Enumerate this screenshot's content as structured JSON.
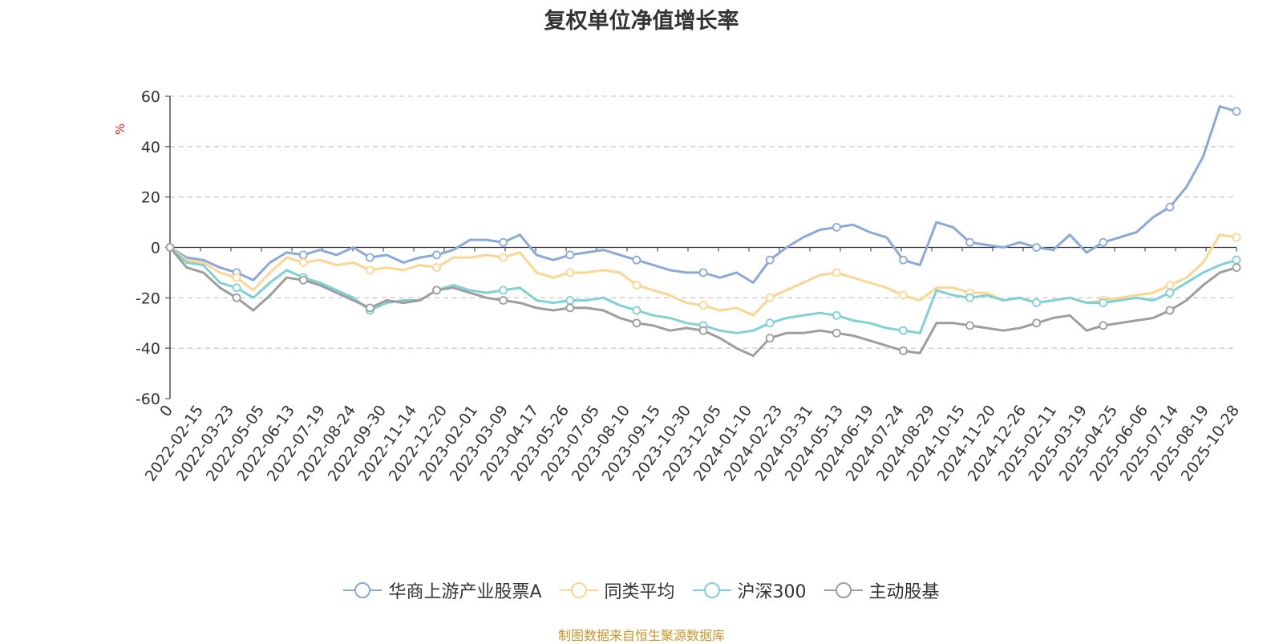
{
  "chart_data": {
    "type": "line",
    "title": "复权单位净值增长率",
    "ylabel": "%",
    "ylim": [
      -60,
      60
    ],
    "yticks": [
      60,
      40,
      20,
      0,
      -20,
      -40,
      -60
    ],
    "x_tick_labels": [
      "0",
      "2022-02-15",
      "2022-03-23",
      "2022-05-05",
      "2022-06-13",
      "2022-07-19",
      "2022-08-24",
      "2022-09-30",
      "2022-11-14",
      "2022-12-20",
      "2023-02-01",
      "2023-03-09",
      "2023-04-17",
      "2023-05-26",
      "2023-07-05",
      "2023-08-10",
      "2023-09-15",
      "2023-10-30",
      "2023-12-05",
      "2024-01-10",
      "2024-02-23",
      "2024-03-31",
      "2024-05-13",
      "2024-06-19",
      "2024-07-24",
      "2024-08-29",
      "2024-10-15",
      "2024-11-20",
      "2024-12-26",
      "2025-02-11",
      "2025-03-19",
      "2025-04-25",
      "2025-06-06",
      "2025-07-14",
      "2025-08-19",
      "2025-10-28"
    ],
    "grid": "dashed-horizontal",
    "legend_position": "bottom-center",
    "series": [
      {
        "name": "华商上游产业股票A",
        "color": "#8aa9d8",
        "values": [
          0,
          -4,
          -5,
          -8,
          -10,
          -13,
          -6,
          -2,
          -3,
          -1,
          -3,
          0,
          -4,
          -3,
          -6,
          -4,
          -3,
          -1,
          3,
          3,
          2,
          5,
          -3,
          -5,
          -3,
          -2,
          -1,
          -3,
          -5,
          -7,
          -9,
          -10,
          -10,
          -12,
          -10,
          -14,
          -5,
          0,
          4,
          7,
          8,
          9,
          6,
          4,
          -5,
          -7,
          10,
          8,
          2,
          1,
          0,
          2,
          0,
          -1,
          5,
          -2,
          2,
          4,
          6,
          12,
          16,
          24,
          36,
          56,
          54
        ]
      },
      {
        "name": "同类平均",
        "color": "#fcd690",
        "values": [
          0,
          -5,
          -6,
          -10,
          -12,
          -17,
          -10,
          -4,
          -6,
          -5,
          -7,
          -6,
          -9,
          -8,
          -9,
          -7,
          -8,
          -4,
          -4,
          -3,
          -4,
          -2,
          -10,
          -12,
          -10,
          -10,
          -9,
          -10,
          -15,
          -17,
          -19,
          -22,
          -23,
          -25,
          -24,
          -27,
          -20,
          -17,
          -14,
          -11,
          -10,
          -12,
          -14,
          -16,
          -19,
          -21,
          -16,
          -16,
          -18,
          -18,
          -21,
          -20,
          -22,
          -21,
          -20,
          -22,
          -21,
          -20,
          -19,
          -18,
          -15,
          -12,
          -6,
          5,
          4
        ]
      },
      {
        "name": "沪深300",
        "color": "#7fd1d6",
        "values": [
          0,
          -6,
          -7,
          -14,
          -16,
          -20,
          -14,
          -9,
          -12,
          -14,
          -17,
          -20,
          -25,
          -22,
          -21,
          -21,
          -17,
          -15,
          -17,
          -18,
          -17,
          -16,
          -21,
          -22,
          -21,
          -21,
          -20,
          -23,
          -25,
          -27,
          -28,
          -30,
          -31,
          -33,
          -34,
          -33,
          -30,
          -28,
          -27,
          -26,
          -27,
          -29,
          -30,
          -32,
          -33,
          -34,
          -17,
          -19,
          -20,
          -19,
          -21,
          -20,
          -22,
          -21,
          -20,
          -22,
          -22,
          -21,
          -20,
          -21,
          -18,
          -14,
          -10,
          -7,
          -5
        ]
      },
      {
        "name": "主动股基",
        "color": "#9e9e9e",
        "values": [
          0,
          -8,
          -10,
          -16,
          -20,
          -25,
          -19,
          -12,
          -13,
          -15,
          -18,
          -21,
          -24,
          -21,
          -22,
          -21,
          -17,
          -16,
          -18,
          -20,
          -21,
          -22,
          -24,
          -25,
          -24,
          -24,
          -25,
          -28,
          -30,
          -31,
          -33,
          -32,
          -33,
          -36,
          -40,
          -43,
          -36,
          -34,
          -34,
          -33,
          -34,
          -35,
          -37,
          -39,
          -41,
          -42,
          -30,
          -30,
          -31,
          -32,
          -33,
          -32,
          -30,
          -28,
          -27,
          -33,
          -31,
          -30,
          -29,
          -28,
          -25,
          -21,
          -15,
          -10,
          -8
        ]
      }
    ]
  },
  "legend": {
    "items": [
      "华商上游产业股票A",
      "同类平均",
      "沪深300",
      "主动股基"
    ]
  },
  "source_text": "制图数据来自恒生聚源数据库"
}
